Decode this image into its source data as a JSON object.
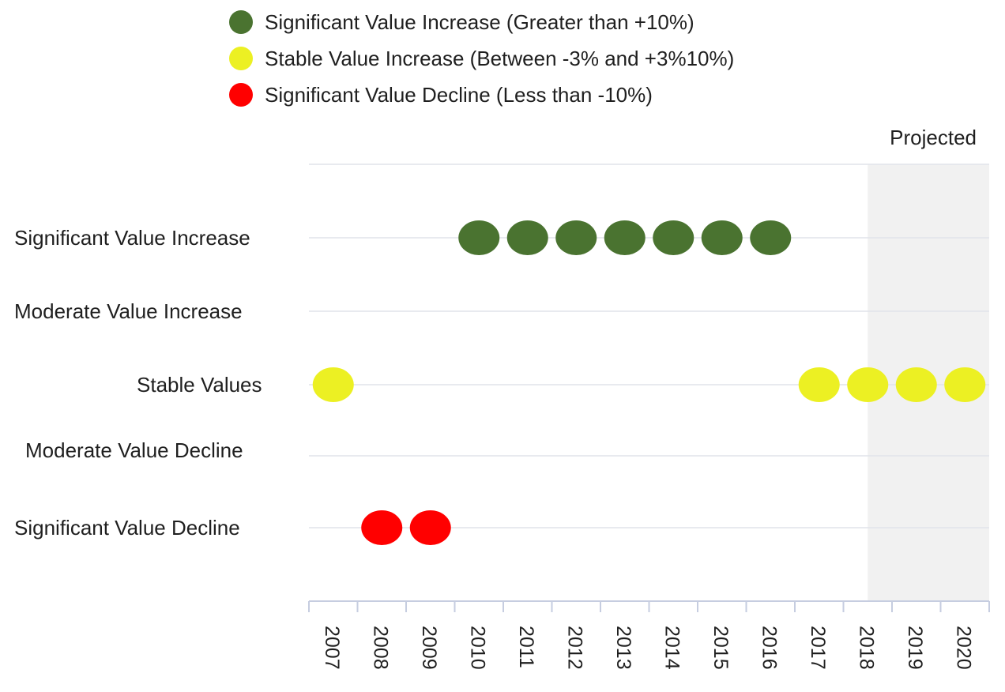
{
  "chart_data": {
    "type": "scatter",
    "categories": [
      "2007",
      "2008",
      "2009",
      "2010",
      "2011",
      "2012",
      "2013",
      "2014",
      "2015",
      "2016",
      "2017",
      "2018",
      "2019",
      "2020"
    ],
    "y_categories": [
      "Significant Value Increase",
      "Moderate Value Increase",
      "Stable Values",
      "Moderate Value Decline",
      "Significant Value Decline"
    ],
    "legend": {
      "position": "top",
      "entries": [
        {
          "label": "Significant Value Increase (Greater than +10%)",
          "color": "#4a7330"
        },
        {
          "label": "Stable Value Increase (Between -3% and +3%10%)",
          "color": "#ecf023"
        },
        {
          "label": "Significant Value Decline (Less than -10%)",
          "color": "#ff0000"
        }
      ]
    },
    "projected": {
      "label": "Projected",
      "from": "2018",
      "to": "2020",
      "color": "#f1f1f1"
    },
    "points": [
      {
        "x": "2007",
        "y": "Stable Values",
        "color": "#ecf023"
      },
      {
        "x": "2008",
        "y": "Significant Value Decline",
        "color": "#ff0000"
      },
      {
        "x": "2009",
        "y": "Significant Value Decline",
        "color": "#ff0000"
      },
      {
        "x": "2010",
        "y": "Significant Value Increase",
        "color": "#4a7330"
      },
      {
        "x": "2011",
        "y": "Significant Value Increase",
        "color": "#4a7330"
      },
      {
        "x": "2012",
        "y": "Significant Value Increase",
        "color": "#4a7330"
      },
      {
        "x": "2013",
        "y": "Significant Value Increase",
        "color": "#4a7330"
      },
      {
        "x": "2014",
        "y": "Significant Value Increase",
        "color": "#4a7330"
      },
      {
        "x": "2015",
        "y": "Significant Value Increase",
        "color": "#4a7330"
      },
      {
        "x": "2016",
        "y": "Significant Value Increase",
        "color": "#4a7330"
      },
      {
        "x": "2017",
        "y": "Stable Values",
        "color": "#ecf023"
      },
      {
        "x": "2018",
        "y": "Stable Values",
        "color": "#ecf023"
      },
      {
        "x": "2019",
        "y": "Stable Values",
        "color": "#ecf023"
      },
      {
        "x": "2020",
        "y": "Stable Values",
        "color": "#ecf023"
      }
    ],
    "grid": true,
    "gridline_color": "#e1e4ea",
    "axis_color": "#c6cde0"
  }
}
